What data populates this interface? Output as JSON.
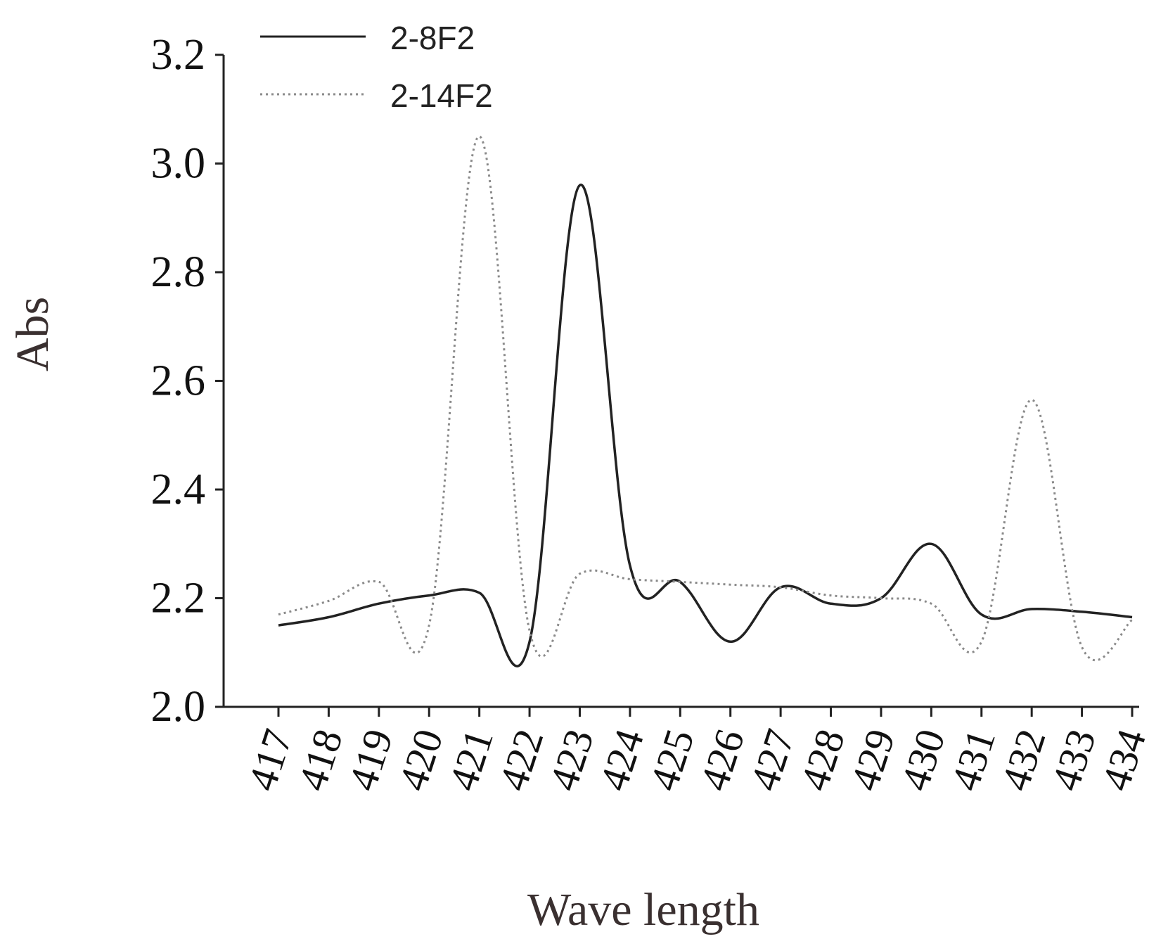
{
  "chart_data": {
    "type": "line",
    "xlabel": "Wave length",
    "ylabel": "Abs",
    "x": [
      417,
      418,
      419,
      420,
      421,
      422,
      423,
      424,
      425,
      426,
      427,
      428,
      429,
      430,
      431,
      432,
      433,
      434
    ],
    "categories": [
      "417",
      "418",
      "419",
      "420",
      "421",
      "422",
      "423",
      "424",
      "425",
      "426",
      "427",
      "428",
      "429",
      "430",
      "431",
      "432",
      "433",
      "434"
    ],
    "ylim": [
      2.0,
      3.2
    ],
    "yticks": [
      "2.0",
      "2.2",
      "2.4",
      "2.6",
      "2.8",
      "3.0",
      "3.2"
    ],
    "grid": false,
    "legend_position": "top-left",
    "series": [
      {
        "name": "2-8F2",
        "style": "solid",
        "color": "#222222",
        "values": [
          2.15,
          2.165,
          2.19,
          2.205,
          2.21,
          2.12,
          2.96,
          2.26,
          2.23,
          2.12,
          2.22,
          2.19,
          2.2,
          2.3,
          2.17,
          2.18,
          2.175,
          2.165
        ]
      },
      {
        "name": "2-14F2",
        "style": "dotted",
        "color": "#8a8a8a",
        "values": [
          2.17,
          2.195,
          2.23,
          2.15,
          3.05,
          2.14,
          2.245,
          2.235,
          2.23,
          2.225,
          2.22,
          2.205,
          2.2,
          2.19,
          2.12,
          2.565,
          2.11,
          2.16
        ]
      }
    ]
  }
}
